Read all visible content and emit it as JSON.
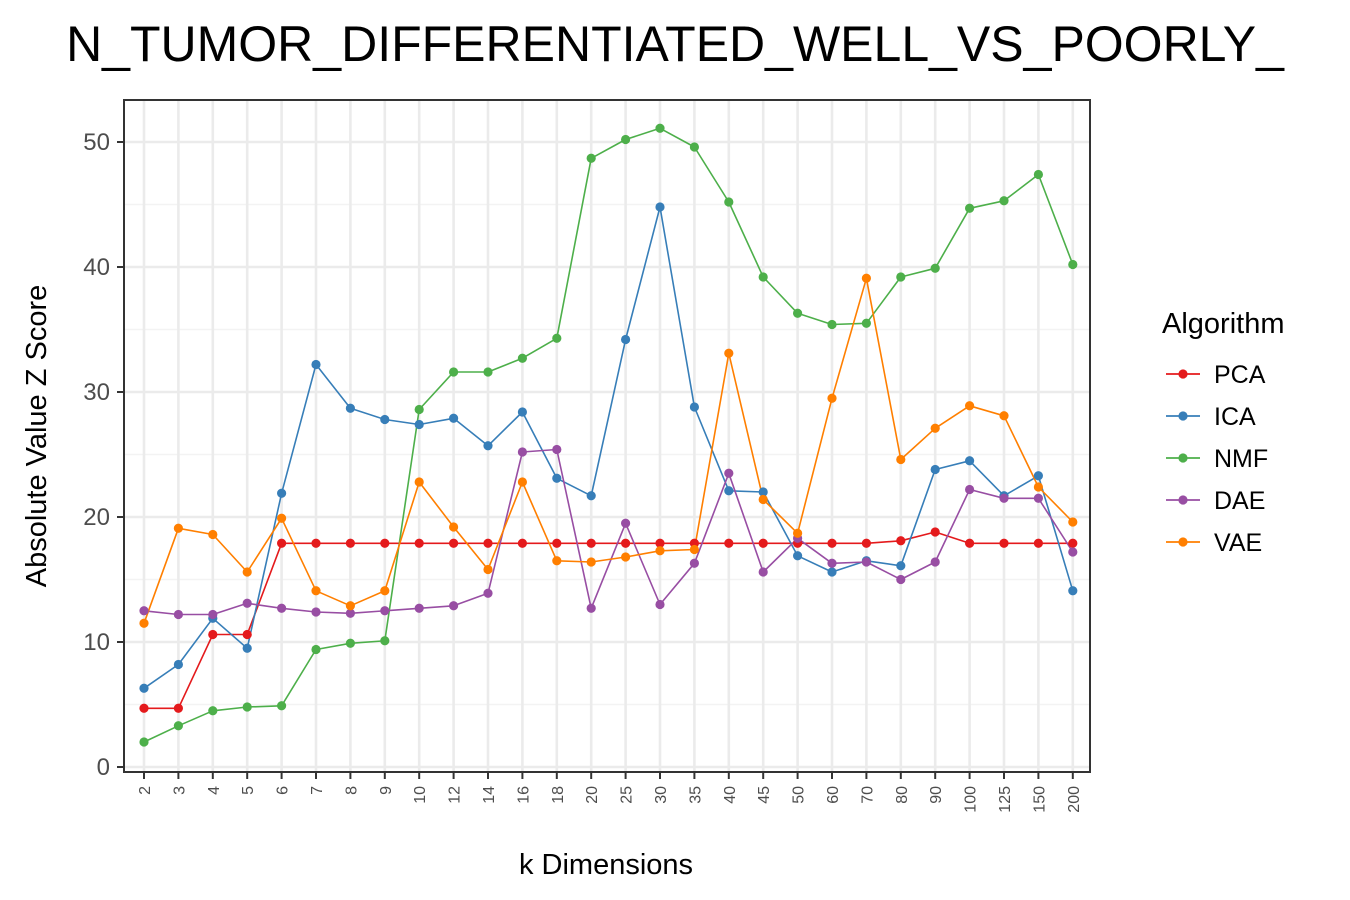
{
  "chart_data": {
    "type": "line",
    "title": "N_TUMOR_DIFFERENTIATED_WELL_VS_POORLY_",
    "xlabel": "k Dimensions",
    "ylabel": "Absolute Value Z Score",
    "ylim": [
      0,
      53
    ],
    "yticks": [
      "0",
      "10",
      "20",
      "30",
      "40",
      "50"
    ],
    "grid": true,
    "legend_title": "Algorithm",
    "legend_position": "right",
    "categories": [
      "2",
      "3",
      "4",
      "5",
      "6",
      "7",
      "8",
      "9",
      "10",
      "12",
      "14",
      "16",
      "18",
      "20",
      "25",
      "30",
      "35",
      "40",
      "45",
      "50",
      "60",
      "70",
      "80",
      "90",
      "100",
      "125",
      "150",
      "200"
    ],
    "series": [
      {
        "name": "PCA",
        "color": "#E41A1C",
        "values": [
          4.7,
          4.7,
          10.6,
          10.6,
          17.9,
          17.9,
          17.9,
          17.9,
          17.9,
          17.9,
          17.9,
          17.9,
          17.9,
          17.9,
          17.9,
          17.9,
          17.9,
          17.9,
          17.9,
          17.9,
          17.9,
          17.9,
          18.1,
          18.8,
          17.9,
          17.9,
          17.9,
          17.9
        ]
      },
      {
        "name": "ICA",
        "color": "#377EB8",
        "values": [
          6.3,
          8.2,
          11.9,
          9.5,
          21.9,
          32.2,
          28.7,
          27.8,
          27.4,
          27.9,
          25.7,
          28.4,
          23.1,
          21.7,
          34.2,
          44.8,
          28.8,
          22.1,
          22.0,
          16.9,
          15.6,
          16.5,
          16.1,
          23.8,
          24.5,
          21.7,
          23.3,
          14.1
        ]
      },
      {
        "name": "NMF",
        "color": "#4DAF4A",
        "values": [
          2.0,
          3.3,
          4.5,
          4.8,
          4.9,
          9.4,
          9.9,
          10.1,
          28.6,
          31.6,
          31.6,
          32.7,
          34.3,
          48.7,
          50.2,
          51.1,
          49.6,
          45.2,
          39.2,
          36.3,
          35.4,
          35.5,
          39.2,
          39.9,
          44.7,
          45.3,
          47.4,
          40.2
        ]
      },
      {
        "name": "DAE",
        "color": "#984EA3",
        "values": [
          12.5,
          12.2,
          12.2,
          13.1,
          12.7,
          12.4,
          12.3,
          12.5,
          12.7,
          12.9,
          13.9,
          25.2,
          25.4,
          12.7,
          19.5,
          13.0,
          16.3,
          23.5,
          15.6,
          18.3,
          16.3,
          16.4,
          15.0,
          16.4,
          22.2,
          21.5,
          21.5,
          17.2
        ]
      },
      {
        "name": "VAE",
        "color": "#FF7F00",
        "values": [
          11.5,
          19.1,
          18.6,
          15.6,
          19.9,
          14.1,
          12.9,
          14.1,
          22.8,
          19.2,
          15.8,
          22.8,
          16.5,
          16.4,
          16.8,
          17.3,
          17.4,
          33.1,
          21.4,
          18.7,
          29.5,
          39.1,
          24.6,
          27.1,
          28.9,
          28.1,
          22.4,
          19.6
        ]
      }
    ]
  }
}
